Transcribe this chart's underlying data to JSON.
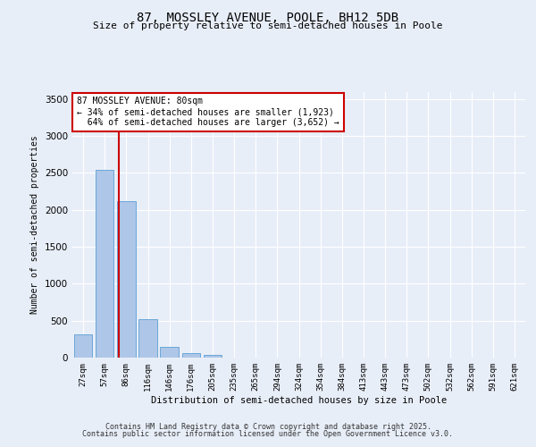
{
  "title": "87, MOSSLEY AVENUE, POOLE, BH12 5DB",
  "subtitle": "Size of property relative to semi-detached houses in Poole",
  "xlabel": "Distribution of semi-detached houses by size in Poole",
  "ylabel": "Number of semi-detached properties",
  "property_label": "87 MOSSLEY AVENUE: 80sqm",
  "pct_smaller": 34,
  "pct_larger": 64,
  "n_smaller": 1923,
  "n_larger": 3652,
  "bar_labels": [
    "27sqm",
    "57sqm",
    "86sqm",
    "116sqm",
    "146sqm",
    "176sqm",
    "205sqm",
    "235sqm",
    "265sqm",
    "294sqm",
    "324sqm",
    "354sqm",
    "384sqm",
    "413sqm",
    "443sqm",
    "473sqm",
    "502sqm",
    "532sqm",
    "562sqm",
    "591sqm",
    "621sqm"
  ],
  "bar_values": [
    320,
    2540,
    2120,
    520,
    145,
    65,
    40,
    0,
    0,
    0,
    0,
    0,
    0,
    0,
    0,
    0,
    0,
    0,
    0,
    0,
    0
  ],
  "bar_color": "#aec6e8",
  "bar_edge_color": "#5a9fd4",
  "red_line_x": 1.65,
  "ylim": [
    0,
    3600
  ],
  "background_color": "#e8eef8",
  "annotation_box_facecolor": "#ffffff",
  "annotation_box_edgecolor": "#cc0000",
  "red_line_color": "#cc0000",
  "footer_line1": "Contains HM Land Registry data © Crown copyright and database right 2025.",
  "footer_line2": "Contains public sector information licensed under the Open Government Licence v3.0."
}
